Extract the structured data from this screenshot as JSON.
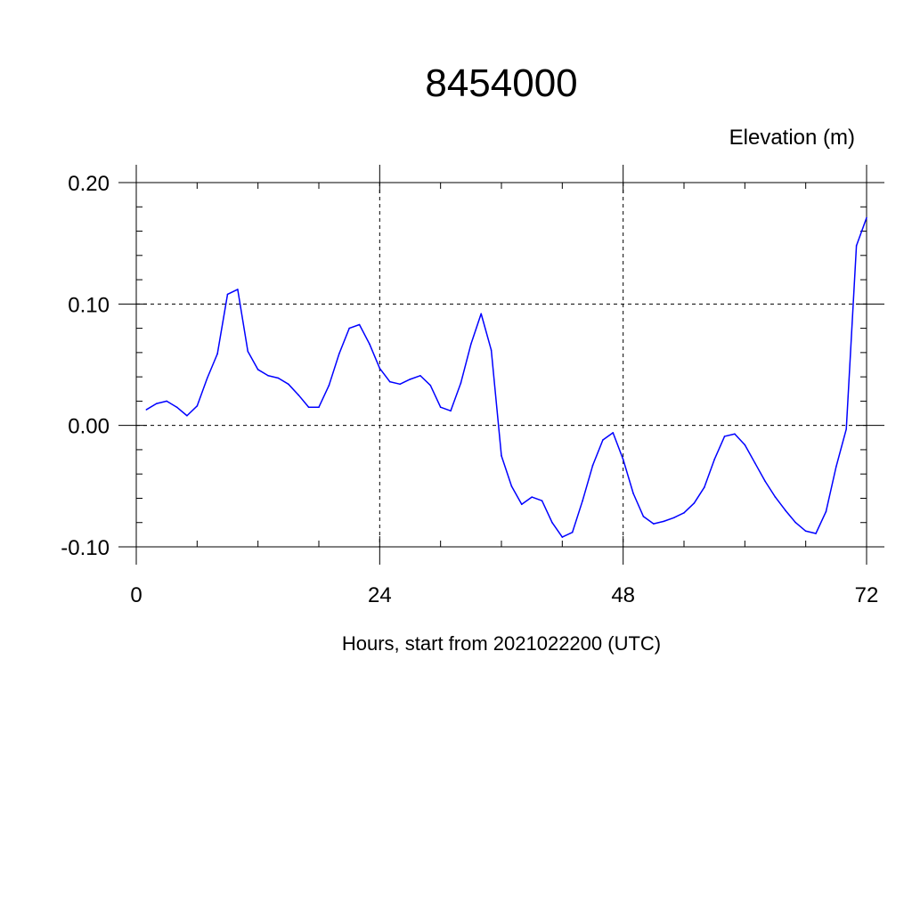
{
  "chart_data": {
    "type": "line",
    "title": "8454000",
    "ylabel": "Elevation (m)",
    "xlabel": "Hours, start from 2021022200 (UTC)",
    "xlim": [
      0,
      72
    ],
    "ylim": [
      -0.1,
      0.2
    ],
    "x_ticks": [
      0,
      24,
      48,
      72
    ],
    "x_tick_labels": [
      "0",
      "24",
      "48",
      "72"
    ],
    "y_ticks": [
      -0.1,
      0.0,
      0.1,
      0.2
    ],
    "y_tick_labels": [
      "-0.10",
      "0.00",
      "0.10",
      "0.20"
    ],
    "grid": true,
    "series": [
      {
        "color": "#0000ff",
        "x": [
          1,
          2,
          3,
          4,
          5,
          6,
          7,
          8,
          9,
          10,
          11,
          12,
          13,
          14,
          15,
          16,
          17,
          18,
          19,
          20,
          21,
          22,
          23,
          24,
          25,
          26,
          27,
          28,
          29,
          30,
          31,
          32,
          33,
          34,
          35,
          36,
          37,
          38,
          39,
          40,
          41,
          42,
          43,
          44,
          45,
          46,
          47,
          48,
          49,
          50,
          51,
          52,
          53,
          54,
          55,
          56,
          57,
          58,
          59,
          60,
          61,
          62,
          63,
          64,
          65,
          66,
          67,
          68,
          69,
          70,
          71,
          72
        ],
        "y": [
          0.013,
          0.018,
          0.02,
          0.015,
          0.008,
          0.016,
          0.039,
          0.059,
          0.108,
          0.112,
          0.061,
          0.046,
          0.041,
          0.039,
          0.034,
          0.025,
          0.015,
          0.015,
          0.033,
          0.059,
          0.08,
          0.083,
          0.067,
          0.047,
          0.036,
          0.034,
          0.038,
          0.041,
          0.033,
          0.015,
          0.012,
          0.035,
          0.067,
          0.092,
          0.062,
          -0.025,
          -0.05,
          -0.065,
          -0.059,
          -0.062,
          -0.08,
          -0.092,
          -0.088,
          -0.062,
          -0.033,
          -0.012,
          -0.006,
          -0.028,
          -0.056,
          -0.075,
          -0.081,
          -0.079,
          -0.076,
          -0.072,
          -0.064,
          -0.051,
          -0.028,
          -0.009,
          -0.007,
          -0.016,
          -0.031,
          -0.046,
          -0.059,
          -0.07,
          -0.08,
          -0.087,
          -0.089,
          -0.071,
          -0.034,
          -0.003,
          0.148,
          0.171
        ]
      }
    ]
  }
}
